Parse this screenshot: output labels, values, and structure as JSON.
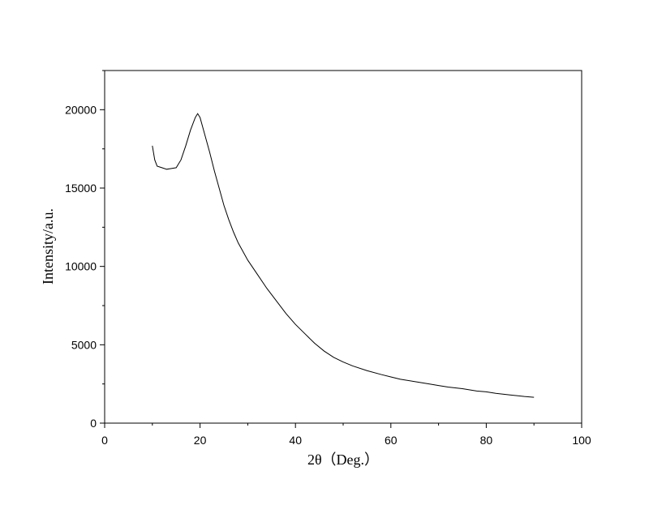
{
  "chart_data": {
    "type": "line",
    "xlabel": "2θ（Deg.）",
    "ylabel": "Intensity/a.u.",
    "xlim": [
      0,
      100
    ],
    "ylim": [
      0,
      22500
    ],
    "x_ticks": [
      0,
      20,
      40,
      60,
      80,
      100
    ],
    "y_ticks": [
      0,
      5000,
      10000,
      15000,
      20000
    ],
    "x_tick_labels": [
      "0",
      "20",
      "40",
      "60",
      "80",
      "100"
    ],
    "y_tick_labels": [
      "0",
      "5000",
      "10000",
      "15000",
      "20000"
    ],
    "grid": false,
    "line_color": "#000000",
    "series": [
      {
        "x": [
          10,
          10.5,
          11,
          12,
          13,
          14,
          15,
          16,
          17,
          18,
          19,
          19.5,
          20,
          21,
          22,
          23,
          24,
          25,
          26,
          27,
          28,
          30,
          32,
          34,
          36,
          38,
          40,
          42,
          44,
          46,
          48,
          50,
          52,
          55,
          58,
          60,
          62,
          65,
          68,
          70,
          72,
          75,
          78,
          80,
          82,
          85,
          88,
          90
        ],
        "y": [
          17700,
          16800,
          16400,
          16300,
          16200,
          16250,
          16300,
          16800,
          17700,
          18700,
          19500,
          19750,
          19500,
          18400,
          17300,
          16100,
          15000,
          13900,
          13000,
          12200,
          11500,
          10400,
          9500,
          8600,
          7800,
          7000,
          6300,
          5700,
          5100,
          4600,
          4200,
          3900,
          3650,
          3350,
          3100,
          2950,
          2800,
          2650,
          2500,
          2400,
          2300,
          2200,
          2050,
          2000,
          1900,
          1800,
          1700,
          1650
        ]
      }
    ]
  }
}
